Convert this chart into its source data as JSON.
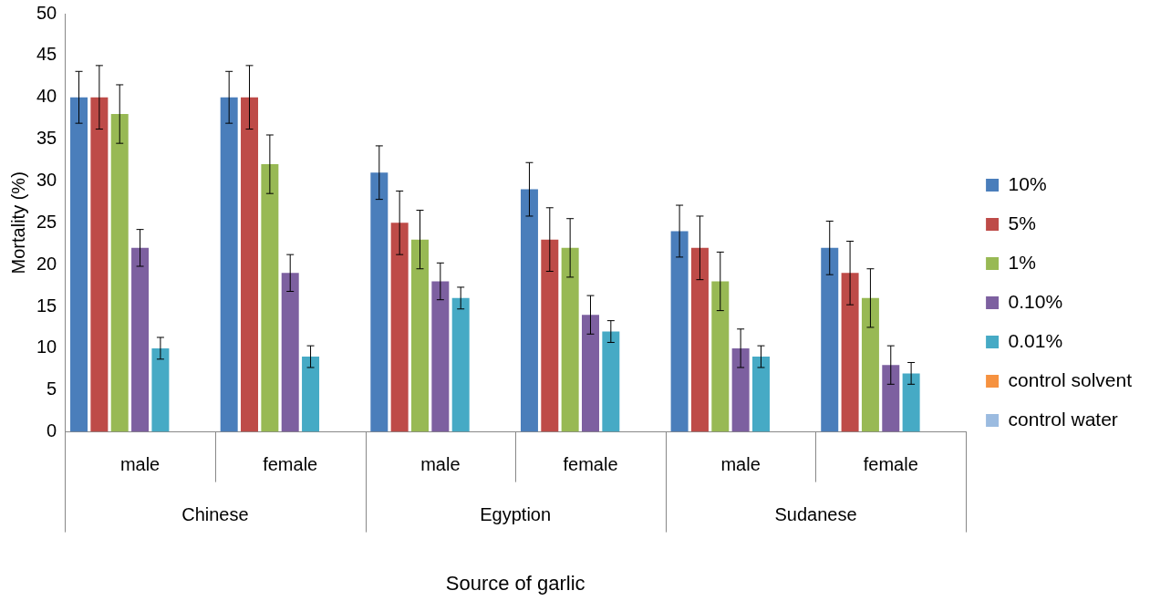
{
  "chart_data": {
    "type": "bar",
    "xlabel": "Source of garlic",
    "ylabel": "Mortality (%)",
    "categories": [
      "male",
      "female",
      "male",
      "female",
      "male",
      "female"
    ],
    "annotations": [
      "Chinese",
      "Egyption",
      "Sudanese"
    ],
    "ylim": [
      0,
      50
    ],
    "yticks": [
      0,
      5,
      10,
      15,
      20,
      25,
      30,
      35,
      40,
      45,
      50
    ],
    "grid": false,
    "legend": "right",
    "series": [
      {
        "name": "10%",
        "color": "#4a7ebb",
        "values": [
          40,
          40,
          31,
          29,
          24,
          22
        ],
        "errors": [
          3.1,
          3.1,
          3.2,
          3.2,
          3.1,
          3.2
        ]
      },
      {
        "name": "5%",
        "color": "#be4b48",
        "values": [
          40,
          40,
          25,
          23,
          22,
          19
        ],
        "errors": [
          3.8,
          3.8,
          3.8,
          3.8,
          3.8,
          3.8
        ]
      },
      {
        "name": "1%",
        "color": "#98b954",
        "values": [
          38,
          32,
          23,
          22,
          18,
          16
        ],
        "errors": [
          3.5,
          3.5,
          3.5,
          3.5,
          3.5,
          3.5
        ]
      },
      {
        "name": "0.10%",
        "color": "#7d60a0",
        "values": [
          22,
          19,
          18,
          14,
          10,
          8
        ],
        "errors": [
          2.2,
          2.2,
          2.2,
          2.3,
          2.3,
          2.3
        ]
      },
      {
        "name": "0.01%",
        "color": "#46aac5",
        "values": [
          10,
          9,
          16,
          12,
          9,
          7
        ],
        "errors": [
          1.3,
          1.3,
          1.3,
          1.3,
          1.3,
          1.3
        ]
      },
      {
        "name": "control solvent",
        "color": "#f69240",
        "values": [
          0,
          0,
          0,
          0,
          0,
          0
        ]
      },
      {
        "name": "control water",
        "color": "#9bbbe0",
        "values": [
          0,
          0,
          0,
          0,
          0,
          0
        ]
      }
    ]
  }
}
